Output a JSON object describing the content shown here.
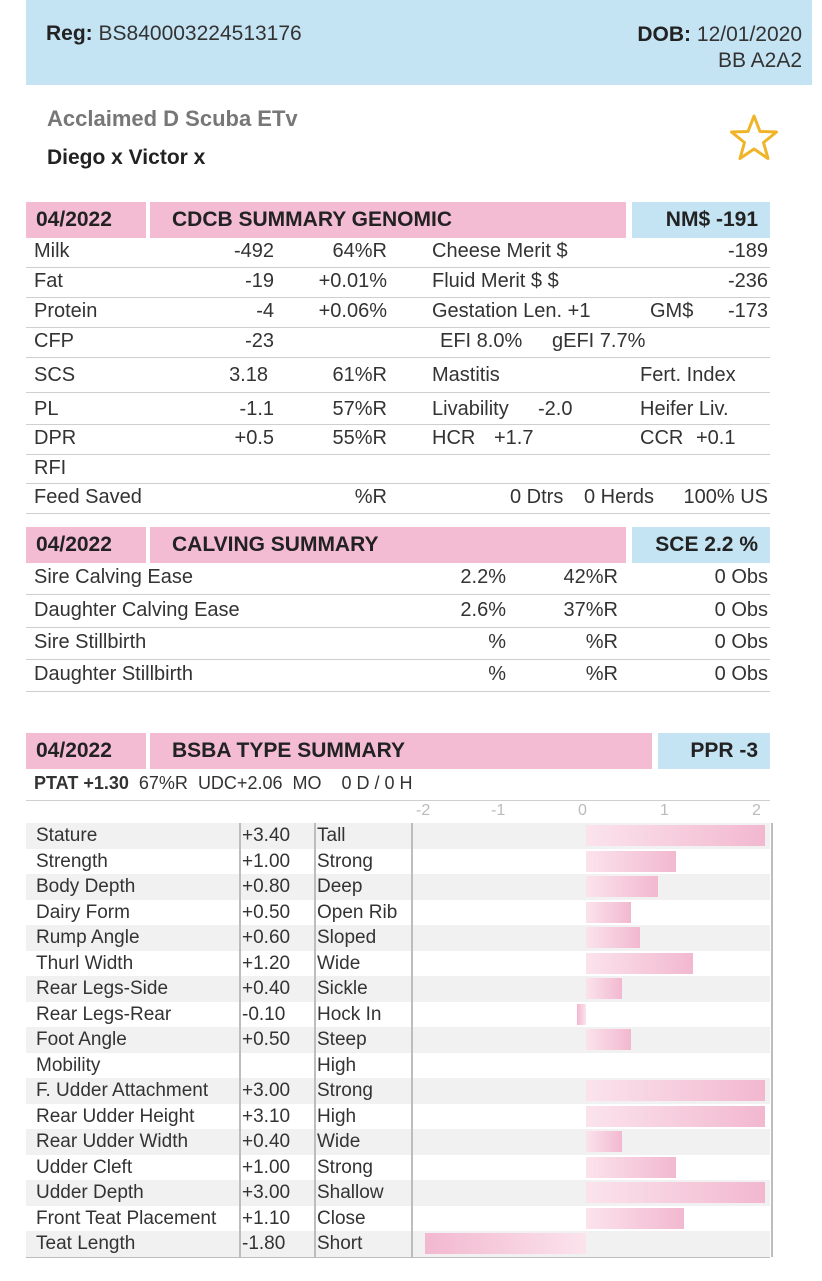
{
  "header": {
    "reg_label": "Reg:",
    "reg_value": "BS840003224513176",
    "dob_label": "DOB:",
    "dob_value": "12/01/2020",
    "genetics": "BB A2A2"
  },
  "animal": {
    "name": "Acclaimed D Scuba ETv",
    "pedigree": "Diego x Victor x",
    "favorite_icon": "star-outline-icon"
  },
  "genomic": {
    "date": "04/2022",
    "title": "CDCB SUMMARY GENOMIC",
    "badge": "NM$ -191",
    "rows": {
      "milk": [
        "Milk",
        "-492",
        "64%R",
        "Cheese Merit $",
        "-189"
      ],
      "fat": [
        "Fat",
        "-19",
        "+0.01%",
        "Fluid Merit $ $",
        "-236"
      ],
      "protein": [
        "Protein",
        "-4",
        "+0.06%",
        "Gestation Len. +1",
        "GM$",
        "-173"
      ],
      "cfp": [
        "CFP",
        "-23",
        "EFI  8.0%",
        "gEFI  7.7%"
      ],
      "scs": [
        "SCS",
        "3.18",
        "61%R",
        "Mastitis",
        "Fert. Index"
      ],
      "pl": [
        "PL",
        "-1.1",
        "57%R",
        "Livability",
        "-2.0",
        "Heifer Liv."
      ],
      "dpr": [
        "DPR",
        "+0.5",
        "55%R",
        "HCR",
        "+1.7",
        "CCR",
        "+0.1"
      ],
      "rfi": [
        "RFI"
      ],
      "feed": [
        "Feed Saved",
        "%R",
        "0 Dtrs",
        "0 Herds",
        "100% US"
      ]
    }
  },
  "calving": {
    "date": "04/2022",
    "title": "CALVING SUMMARY",
    "badge": "SCE 2.2 %",
    "rows": [
      [
        "Sire Calving Ease",
        "2.2%",
        "42%R",
        "0 Obs"
      ],
      [
        "Daughter Calving Ease",
        "2.6%",
        "37%R",
        "0 Obs"
      ],
      [
        "Sire Stillbirth",
        "%",
        "%R",
        "0 Obs"
      ],
      [
        "Daughter Stillbirth",
        "%",
        "%R",
        "0 Obs"
      ]
    ]
  },
  "type": {
    "date": "04/2022",
    "title": "BSBA TYPE SUMMARY",
    "badge": "PPR -3",
    "ptat_label": "PTAT +1.30",
    "ptat_rel": "67%R",
    "udc": "UDC+2.06",
    "mo": "MO",
    "dh": "0 D /  0 H",
    "axis_ticks": [
      "-2",
      "-1",
      "0",
      "1",
      "2"
    ],
    "traits": [
      [
        "Stature",
        "+3.40",
        "Tall"
      ],
      [
        "Strength",
        "+1.00",
        "Strong"
      ],
      [
        "Body Depth",
        "+0.80",
        "Deep"
      ],
      [
        "Dairy Form",
        "+0.50",
        "Open Rib"
      ],
      [
        "Rump Angle",
        "+0.60",
        "Sloped"
      ],
      [
        "Thurl Width",
        "+1.20",
        "Wide"
      ],
      [
        "Rear Legs-Side",
        "+0.40",
        "Sickle"
      ],
      [
        "Rear Legs-Rear",
        "-0.10",
        "Hock In"
      ],
      [
        "Foot Angle",
        "+0.50",
        "Steep"
      ],
      [
        "Mobility",
        "",
        "High"
      ],
      [
        "F. Udder Attachment",
        "+3.00",
        "Strong"
      ],
      [
        "Rear Udder Height",
        "+3.10",
        "High"
      ],
      [
        "Rear Udder Width",
        "+0.40",
        "Wide"
      ],
      [
        "Udder Cleft",
        "+1.00",
        "Strong"
      ],
      [
        "Udder Depth",
        "+3.00",
        "Shallow"
      ],
      [
        "Front Teat Placement",
        "+1.10",
        "Close"
      ],
      [
        "Teat Length",
        "-1.80",
        "Short"
      ]
    ]
  },
  "colors": {
    "header_blue": "#c4e3f3",
    "section_pink": "#f4bcd3",
    "bar_pink": "#f2b8cf",
    "star_gold": "#f0b429"
  }
}
